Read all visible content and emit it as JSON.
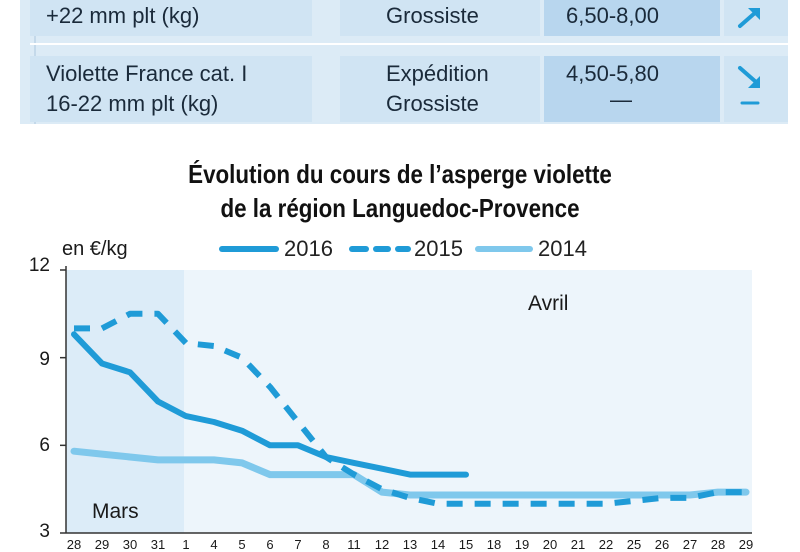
{
  "table": {
    "rows": [
      {
        "product": "+22 mm plt (kg)",
        "stage": "Grossiste",
        "price": "6,50-8,00",
        "trend": "up"
      },
      {
        "product": "Violette France cat. I",
        "product_line2": "16-22 mm plt (kg)",
        "stage": "Expédition",
        "stage_line2": "Grossiste",
        "price": "4,50-5,80",
        "price_line2": "—",
        "trend": "down",
        "trend_line2": "stable"
      }
    ]
  },
  "chart_data": {
    "type": "line",
    "title": "Évolution du cours de l’asperge violette",
    "subtitle": "de la région Languedoc-Provence",
    "ylabel": "en €/kg",
    "ylim": [
      3,
      12
    ],
    "yticks": [
      3,
      6,
      9,
      12
    ],
    "x_ticks": [
      "28",
      "29",
      "30",
      "31",
      "1",
      "4",
      "5",
      "6",
      "7",
      "8",
      "11",
      "12",
      "13",
      "14",
      "15",
      "18",
      "19",
      "20",
      "21",
      "22",
      "25",
      "26",
      "27",
      "28",
      "29"
    ],
    "period_labels": [
      "Mars",
      "Avril"
    ],
    "legend_position": "top",
    "colors": {
      "2016": "#1f9bd7",
      "2015": "#1f9bd7",
      "2014": "#7fc8ec",
      "march_shade": "#dcecf8",
      "april_bg": "#edf5fb"
    },
    "series": [
      {
        "name": "2016",
        "style": "solid",
        "values": [
          9.8,
          8.8,
          8.5,
          7.5,
          7.0,
          6.8,
          6.5,
          6.0,
          6.0,
          5.6,
          5.4,
          5.2,
          5.0,
          5.0,
          5.0,
          null,
          null,
          null,
          null,
          null,
          null,
          null,
          null,
          null,
          null
        ]
      },
      {
        "name": "2015",
        "style": "dashed",
        "values": [
          10.0,
          10.0,
          10.5,
          10.5,
          9.5,
          9.4,
          9.0,
          8.0,
          6.8,
          5.6,
          5.0,
          4.5,
          4.2,
          4.0,
          4.0,
          4.0,
          4.0,
          4.0,
          4.0,
          4.0,
          4.1,
          4.2,
          4.2,
          4.4,
          4.4
        ]
      },
      {
        "name": "2014",
        "style": "solid",
        "values": [
          5.8,
          5.7,
          5.6,
          5.5,
          5.5,
          5.5,
          5.4,
          5.0,
          5.0,
          5.0,
          5.0,
          4.4,
          4.3,
          4.3,
          4.3,
          4.3,
          4.3,
          4.3,
          4.3,
          4.3,
          4.3,
          4.3,
          4.3,
          4.4,
          4.4
        ]
      }
    ]
  }
}
